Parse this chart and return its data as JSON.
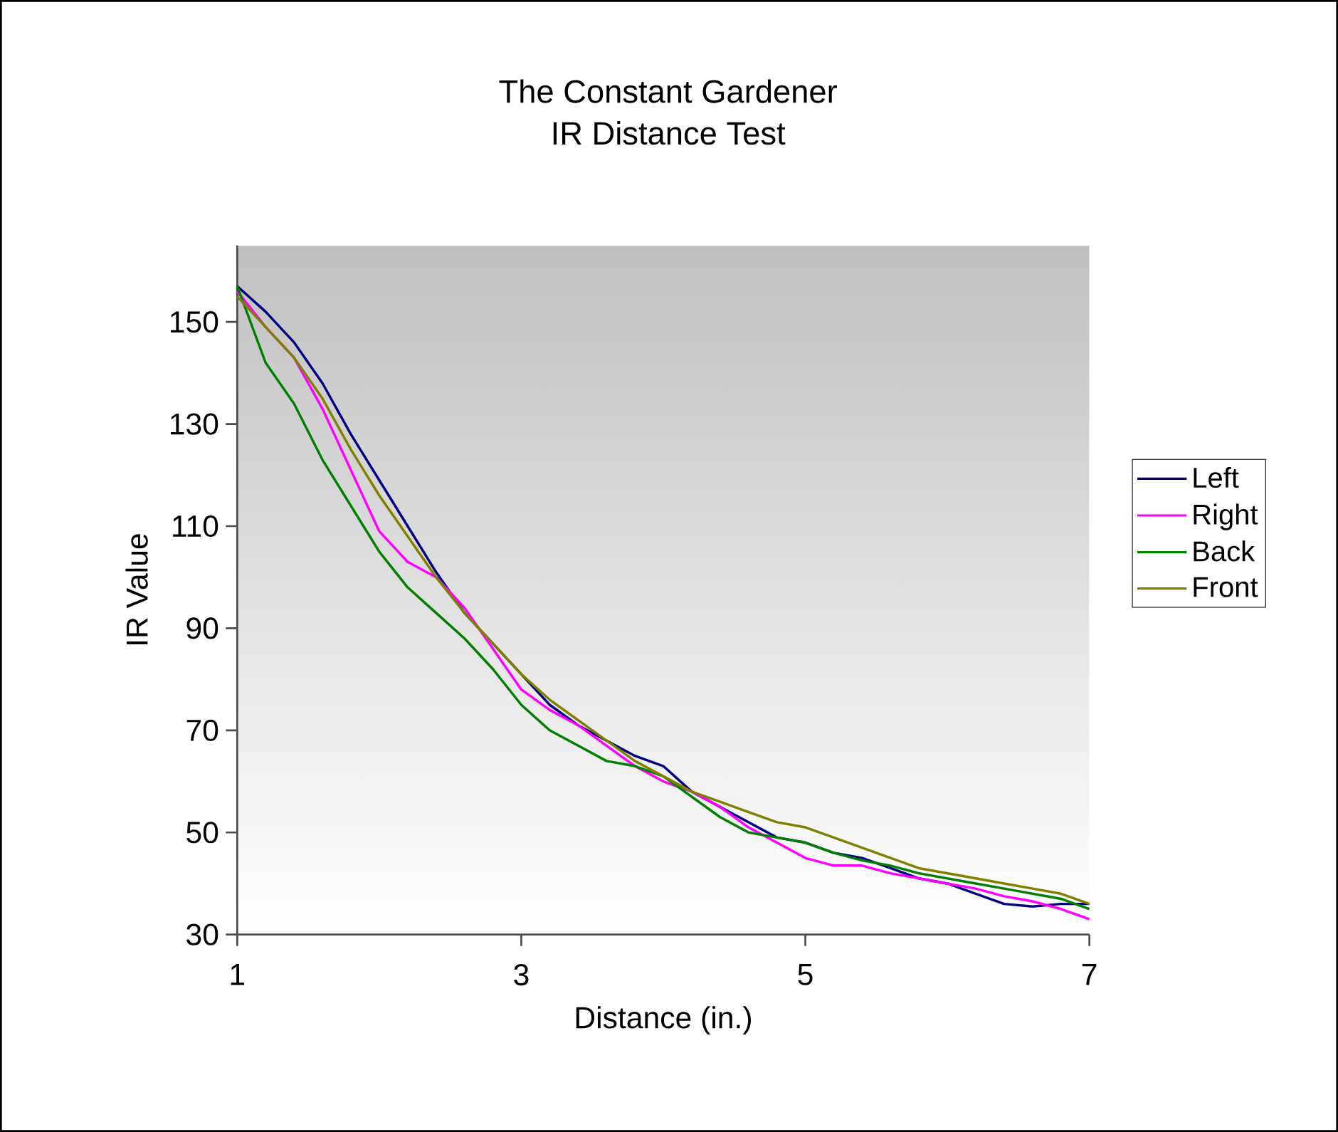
{
  "chart_data": {
    "type": "line",
    "title": "The Constant Gardener",
    "subtitle": "IR Distance Test",
    "xlabel": "Distance (in.)",
    "ylabel": "IR Value",
    "x": [
      1,
      1.2,
      1.4,
      1.6,
      1.8,
      2.0,
      2.2,
      2.4,
      2.6,
      2.8,
      3.0,
      3.2,
      3.4,
      3.6,
      3.8,
      4.0,
      4.2,
      4.4,
      4.6,
      4.8,
      5.0,
      5.2,
      5.4,
      5.6,
      5.8,
      6.0,
      6.2,
      6.4,
      6.6,
      6.8,
      7.0
    ],
    "series": [
      {
        "name": "Left",
        "color": "#000080",
        "values": [
          157,
          152,
          146,
          138,
          128,
          119,
          110,
          101,
          93,
          87,
          81,
          75,
          71,
          68,
          65,
          63,
          58,
          55,
          52,
          49,
          48,
          46,
          45,
          43,
          41,
          40,
          38,
          36,
          35.5,
          36,
          36
        ]
      },
      {
        "name": "Right",
        "color": "#ff00ff",
        "values": [
          156,
          149,
          143,
          133,
          121,
          109,
          103,
          100,
          94,
          86,
          78,
          74,
          71,
          67,
          63,
          60,
          58,
          55,
          51,
          48,
          45,
          43.5,
          43.5,
          42,
          41,
          40,
          39,
          37.5,
          36.5,
          35,
          33
        ]
      },
      {
        "name": "Back",
        "color": "#008000",
        "values": [
          157,
          142,
          134,
          123,
          114,
          105,
          98,
          93,
          88,
          82,
          75,
          70,
          67,
          64,
          63,
          61,
          57,
          53,
          50,
          49,
          48,
          46,
          44.5,
          43.5,
          42,
          41,
          40,
          39,
          38,
          37,
          35
        ]
      },
      {
        "name": "Front",
        "color": "#808000",
        "values": [
          155,
          149,
          143,
          135,
          125,
          116,
          108,
          100,
          93,
          87,
          81,
          76,
          72,
          68,
          64,
          61,
          58,
          56,
          54,
          52,
          51,
          49,
          47,
          45,
          43,
          42,
          41,
          40,
          39,
          38,
          36
        ]
      }
    ],
    "xlim": [
      1,
      7
    ],
    "ylim": [
      30,
      165
    ],
    "xticks": [
      1,
      3,
      5,
      7
    ],
    "yticks": [
      30,
      50,
      70,
      90,
      110,
      130,
      150
    ],
    "grid": false,
    "legend": "right",
    "marker": "none",
    "line_style": "solid"
  }
}
